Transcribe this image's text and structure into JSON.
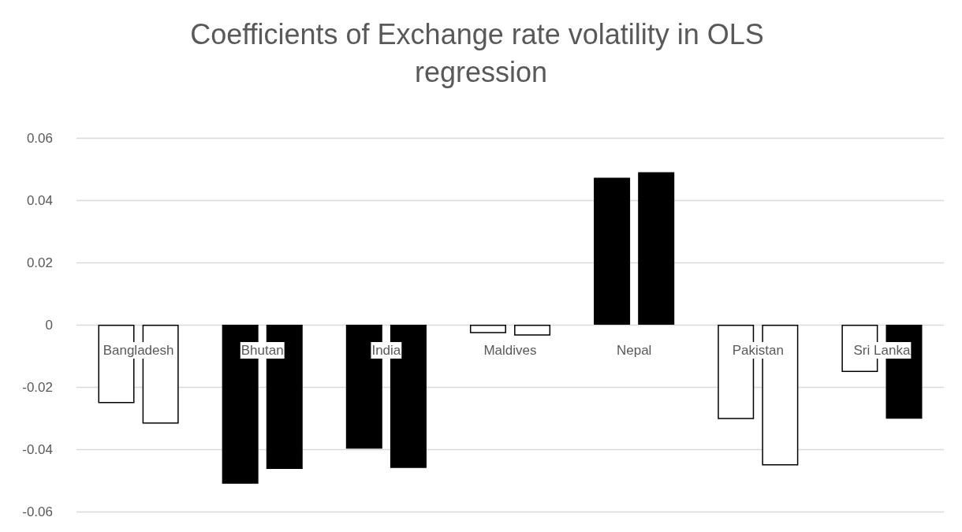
{
  "chart_data": {
    "type": "bar",
    "title": "Coefficients of Exchange rate volatility in OLS regression",
    "categories": [
      "Bangladesh",
      "Bhutan",
      "India",
      "Maldives",
      "Nepal",
      "Pakistan",
      "Sri Lanka"
    ],
    "series": [
      {
        "colors": [
          "#ffffff",
          "#000000",
          "#000000",
          "#ffffff",
          "#000000",
          "#ffffff",
          "#ffffff"
        ],
        "values": [
          -0.0252,
          -0.0511,
          -0.0398,
          -0.0027,
          0.0472,
          -0.0303,
          -0.0152
        ]
      },
      {
        "colors": [
          "#ffffff",
          "#000000",
          "#000000",
          "#ffffff",
          "#000000",
          "#ffffff",
          "#000000"
        ],
        "values": [
          -0.0318,
          -0.0463,
          -0.046,
          -0.0035,
          0.049,
          -0.0452,
          -0.0302
        ]
      }
    ],
    "ylim": [
      -0.06,
      0.06
    ],
    "yticks": [
      -0.06,
      -0.04,
      -0.02,
      0,
      0.02,
      0.04,
      0.06
    ],
    "grid": "y"
  }
}
